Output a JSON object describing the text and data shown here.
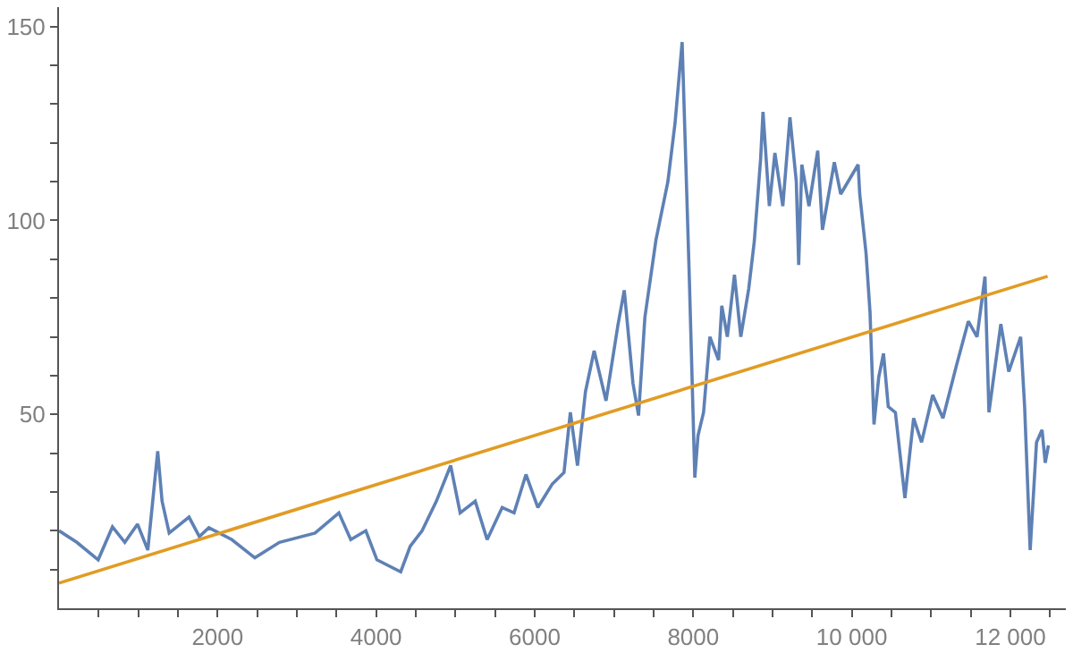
{
  "chart_data": {
    "type": "line",
    "series": [
      {
        "name": null,
        "color": "#5e81b5",
        "x": [
          0,
          225,
          494,
          674,
          830,
          990,
          1120,
          1245,
          1300,
          1390,
          1640,
          1770,
          1890,
          2180,
          2470,
          2780,
          3230,
          3530,
          3680,
          3870,
          4010,
          4310,
          4430,
          4580,
          4760,
          4940,
          5060,
          5250,
          5400,
          5590,
          5740,
          5890,
          6040,
          6220,
          6370,
          6450,
          6540,
          6640,
          6750,
          6900,
          7050,
          7130,
          7240,
          7310,
          7390,
          7530,
          7680,
          7770,
          7860,
          7950,
          8020,
          8060,
          8130,
          8210,
          8320,
          8360,
          8430,
          8520,
          8600,
          8700,
          8770,
          8850,
          8880,
          8960,
          9030,
          9130,
          9220,
          9300,
          9330,
          9370,
          9460,
          9570,
          9630,
          9780,
          9860,
          9970,
          10080,
          10100,
          10180,
          10230,
          10280,
          10340,
          10400,
          10460,
          10550,
          10670,
          10780,
          10880,
          11020,
          11150,
          11320,
          11470,
          11580,
          11680,
          11730,
          11880,
          11980,
          12130,
          12180,
          12250,
          12330,
          12400,
          12440,
          12480
        ],
        "values": [
          20,
          17,
          12.5,
          21,
          17,
          21.7,
          15,
          40.5,
          27.6,
          19.4,
          23.5,
          18.5,
          20.8,
          17.7,
          13,
          17,
          19.4,
          24.6,
          17.7,
          20,
          12.5,
          9.4,
          16,
          20,
          27.6,
          36.8,
          24.6,
          27.6,
          17.7,
          26,
          24.6,
          34.5,
          26,
          32,
          35,
          50.5,
          36.8,
          55.8,
          66.4,
          53.5,
          73,
          82,
          58,
          49.7,
          75,
          95,
          110,
          125,
          146,
          85.6,
          33.7,
          44.5,
          50.5,
          70,
          64,
          78,
          70,
          86,
          70,
          82.4,
          94.6,
          115.9,
          128,
          103.7,
          117.4,
          103.7,
          126.6,
          110,
          88.5,
          114.4,
          103.7,
          118,
          97.6,
          115,
          106.8,
          110.6,
          114.4,
          106.8,
          91.5,
          76.3,
          47.4,
          59.6,
          65.7,
          52,
          50.5,
          28.4,
          49,
          42.8,
          55,
          49,
          62.6,
          74,
          70,
          85.5,
          50.5,
          73.3,
          61,
          70,
          52,
          15,
          42.8,
          46,
          37.5,
          42
        ]
      },
      {
        "name": null,
        "color": "#e19c24",
        "x": [
          0,
          12470
        ],
        "values": [
          6.5,
          85.6
        ]
      }
    ],
    "xlim": [
      0,
      12700
    ],
    "ylim": [
      0,
      155
    ],
    "xticks": [
      {
        "value": 500,
        "label": null
      },
      {
        "value": 1000,
        "label": null
      },
      {
        "value": 1500,
        "label": null
      },
      2000,
      {
        "value": 2500,
        "label": null
      },
      {
        "value": 3000,
        "label": null
      },
      {
        "value": 3500,
        "label": null
      },
      4000,
      {
        "value": 4500,
        "label": null
      },
      {
        "value": 5000,
        "label": null
      },
      {
        "value": 5500,
        "label": null
      },
      6000,
      {
        "value": 6500,
        "label": null
      },
      {
        "value": 7000,
        "label": null
      },
      {
        "value": 7500,
        "label": null
      },
      8000,
      {
        "value": 8500,
        "label": null
      },
      {
        "value": 9000,
        "label": null
      },
      {
        "value": 9500,
        "label": null
      },
      {
        "value": 10000,
        "label": "10 000"
      },
      {
        "value": 10500,
        "label": null
      },
      {
        "value": 11000,
        "label": null
      },
      {
        "value": 11500,
        "label": null
      },
      {
        "value": 12000,
        "label": "12 000"
      },
      {
        "value": 12500,
        "label": null
      }
    ],
    "yticks": [
      {
        "value": 10,
        "label": null
      },
      {
        "value": 20,
        "label": null
      },
      {
        "value": 30,
        "label": null
      },
      {
        "value": 40,
        "label": null
      },
      50,
      {
        "value": 60,
        "label": null
      },
      {
        "value": 70,
        "label": null
      },
      {
        "value": 80,
        "label": null
      },
      {
        "value": 90,
        "label": null
      },
      100,
      {
        "value": 110,
        "label": null
      },
      {
        "value": 120,
        "label": null
      },
      {
        "value": 130,
        "label": null
      },
      {
        "value": 140,
        "label": null
      },
      150
    ],
    "grid": false,
    "marker": "none",
    "line_style": "solid"
  }
}
